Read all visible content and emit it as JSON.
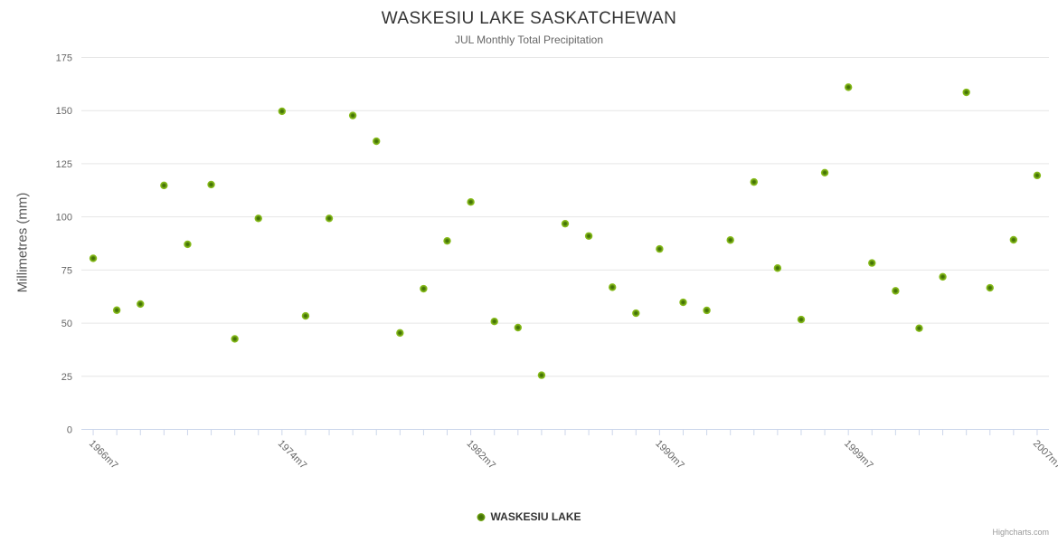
{
  "chart": {
    "title": "WASKESIU LAKE SASKATCHEWAN",
    "subtitle": "JUL Monthly Total Precipitation",
    "y_axis_title": "Millimetres (mm)",
    "legend_label": "WASKESIU LAKE",
    "credits": "Highcharts.com"
  },
  "colors": {
    "point_core": "#3f6c05",
    "point_mid": "#4a7a08",
    "point_outer": "#7fb318",
    "point_rim": "#8cc11e",
    "grid_line": "#e6e6e6",
    "axis_line": "#ccd6eb",
    "axis_label": "#666666"
  },
  "chart_data": {
    "type": "scatter",
    "title": "WASKESIU LAKE SASKATCHEWAN",
    "subtitle": "JUL Monthly Total Precipitation",
    "xlabel": "",
    "ylabel": "Millimetres (mm)",
    "ylim": [
      0,
      175
    ],
    "y_ticks": [
      0,
      25,
      50,
      75,
      100,
      125,
      150,
      175
    ],
    "grid": true,
    "legend": [
      "WASKESIU LAKE"
    ],
    "legend_position": "bottom",
    "x_shown_tick_indices": [
      0,
      8,
      16,
      24,
      32,
      40
    ],
    "x_shown_tick_labels": [
      "1966m7",
      "1974m7",
      "1982m7",
      "1990m7",
      "1999m7",
      "2007m7"
    ],
    "categories": [
      "1966m7",
      "1967m7",
      "1968m7",
      "1969m7",
      "1970m7",
      "1971m7",
      "1972m7",
      "1973m7",
      "1974m7",
      "1975m7",
      "1976m7",
      "1977m7",
      "1978m7",
      "1979m7",
      "1980m7",
      "1981m7",
      "1982m7",
      "1983m7",
      "1984m7",
      "1985m7",
      "1986m7",
      "1987m7",
      "1988m7",
      "1989m7",
      "1990m7",
      "1992m7",
      "1993m7",
      "1994m7",
      "1995m7",
      "1996m7",
      "1997m7",
      "1998m7",
      "1999m7",
      "2000m7",
      "2001m7",
      "2002m7",
      "2003m7",
      "2004m7",
      "2005m7",
      "2006m7",
      "2007m7"
    ],
    "series": [
      {
        "name": "WASKESIU LAKE",
        "values": [
          80.5,
          56.1,
          59,
          114.8,
          87.1,
          115.2,
          42.6,
          99.3,
          149.7,
          53.4,
          99.3,
          147.7,
          135.6,
          45.4,
          66.2,
          88.7,
          107,
          50.8,
          47.9,
          25.5,
          96.8,
          91,
          66.9,
          54.7,
          84.9,
          59.8,
          56,
          89.1,
          116.4,
          75.9,
          51.7,
          120.8,
          161,
          78.3,
          65.2,
          47.6,
          71.8,
          158.6,
          66.6,
          89.2,
          119.5
        ]
      }
    ]
  }
}
